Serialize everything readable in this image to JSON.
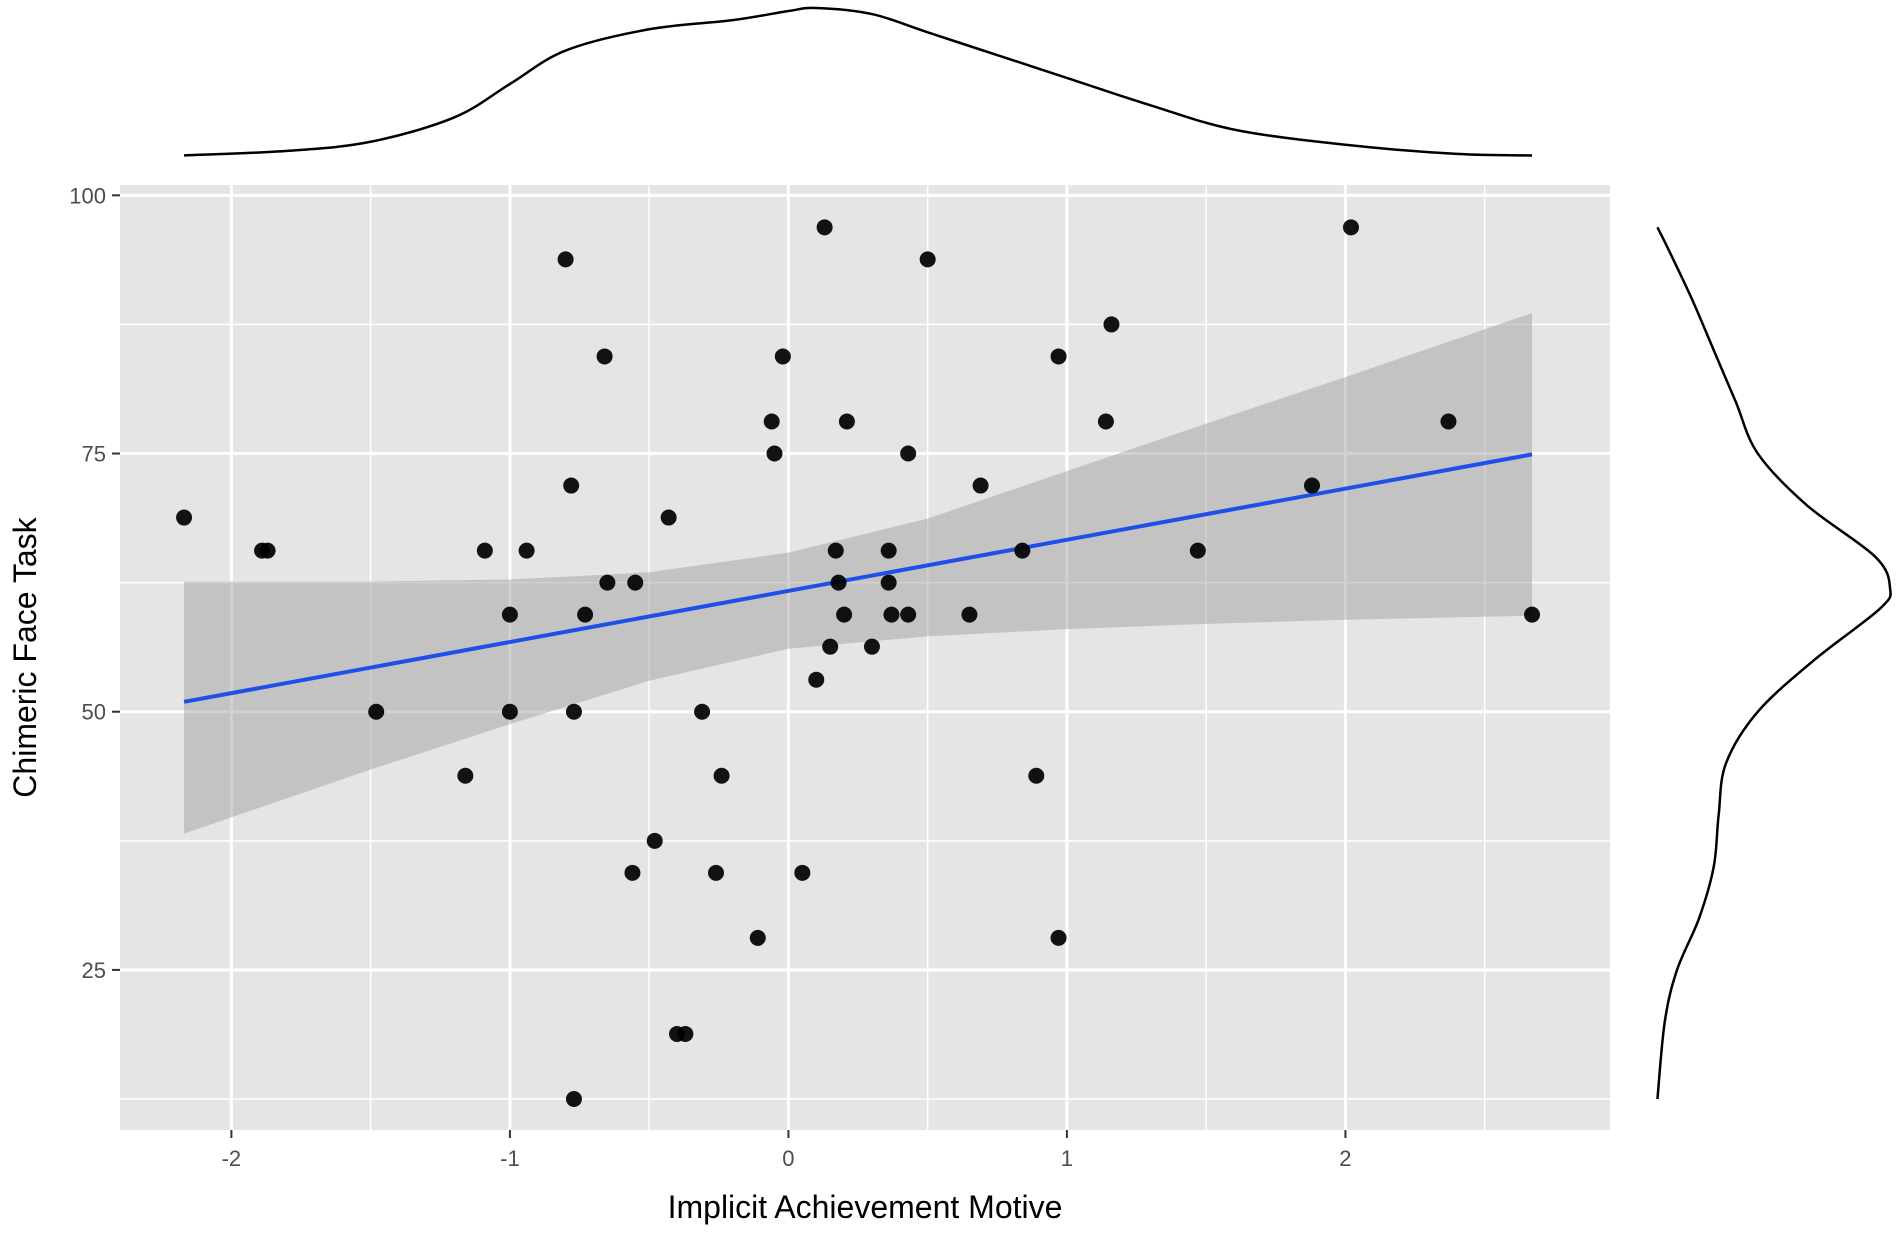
{
  "chart_data": {
    "type": "scatter",
    "xlabel": "Implicit Achievement Motive",
    "ylabel": "Chimeric Face Task",
    "xlim": [
      -2.4,
      2.95
    ],
    "ylim": [
      9.5,
      101
    ],
    "x_ticks": [
      -2,
      -1,
      0,
      1,
      2
    ],
    "y_ticks": [
      25,
      50,
      75,
      100
    ],
    "x_tick_labels": [
      "-2",
      "-1",
      "0",
      "1",
      "2"
    ],
    "y_tick_labels": [
      "25",
      "50",
      "75",
      "100"
    ],
    "grid": true,
    "legend": "none",
    "colors": {
      "panel": "#e5e5e5",
      "grid": "#ffffff",
      "points": "#000000",
      "line": "#1f4fe8",
      "band": "#999999"
    },
    "regression": {
      "x_range": [
        -2.17,
        2.67
      ],
      "intercept": 61.7,
      "slope": 4.95
    },
    "confidence_band": {
      "x": [
        -2.17,
        -1.5,
        -1.0,
        -0.5,
        0.0,
        0.5,
        1.0,
        1.5,
        2.0,
        2.67
      ],
      "lower": [
        38.2,
        44.4,
        48.8,
        53.0,
        56.1,
        57.3,
        58.0,
        58.5,
        58.9,
        59.3
      ],
      "upper": [
        62.6,
        62.6,
        62.8,
        63.5,
        65.4,
        68.7,
        73.3,
        77.9,
        82.4,
        88.6
      ]
    },
    "points": [
      {
        "x": -2.17,
        "y": 68.8
      },
      {
        "x": -1.89,
        "y": 65.6
      },
      {
        "x": -1.87,
        "y": 65.6
      },
      {
        "x": -1.48,
        "y": 50.0
      },
      {
        "x": -1.16,
        "y": 43.8
      },
      {
        "x": -1.09,
        "y": 65.6
      },
      {
        "x": -1.0,
        "y": 59.4
      },
      {
        "x": -1.0,
        "y": 50.0
      },
      {
        "x": -0.94,
        "y": 65.6
      },
      {
        "x": -0.8,
        "y": 93.8
      },
      {
        "x": -0.78,
        "y": 71.9
      },
      {
        "x": -0.77,
        "y": 50.0
      },
      {
        "x": -0.77,
        "y": 12.5
      },
      {
        "x": -0.73,
        "y": 59.4
      },
      {
        "x": -0.66,
        "y": 84.4
      },
      {
        "x": -0.65,
        "y": 62.5
      },
      {
        "x": -0.55,
        "y": 62.5
      },
      {
        "x": -0.56,
        "y": 34.4
      },
      {
        "x": -0.48,
        "y": 37.5
      },
      {
        "x": -0.43,
        "y": 68.8
      },
      {
        "x": -0.4,
        "y": 18.8
      },
      {
        "x": -0.37,
        "y": 18.8
      },
      {
        "x": -0.31,
        "y": 50.0
      },
      {
        "x": -0.26,
        "y": 34.4
      },
      {
        "x": -0.24,
        "y": 43.8
      },
      {
        "x": -0.11,
        "y": 28.1
      },
      {
        "x": -0.06,
        "y": 78.1
      },
      {
        "x": -0.05,
        "y": 75.0
      },
      {
        "x": -0.02,
        "y": 84.4
      },
      {
        "x": 0.05,
        "y": 34.4
      },
      {
        "x": 0.1,
        "y": 53.1
      },
      {
        "x": 0.13,
        "y": 96.9
      },
      {
        "x": 0.15,
        "y": 56.3
      },
      {
        "x": 0.17,
        "y": 65.6
      },
      {
        "x": 0.18,
        "y": 62.5
      },
      {
        "x": 0.2,
        "y": 59.4
      },
      {
        "x": 0.21,
        "y": 78.1
      },
      {
        "x": 0.3,
        "y": 56.3
      },
      {
        "x": 0.36,
        "y": 65.6
      },
      {
        "x": 0.36,
        "y": 62.5
      },
      {
        "x": 0.37,
        "y": 59.4
      },
      {
        "x": 0.43,
        "y": 59.4
      },
      {
        "x": 0.43,
        "y": 75.0
      },
      {
        "x": 0.5,
        "y": 93.8
      },
      {
        "x": 0.65,
        "y": 59.4
      },
      {
        "x": 0.69,
        "y": 71.9
      },
      {
        "x": 0.84,
        "y": 65.6
      },
      {
        "x": 0.89,
        "y": 43.8
      },
      {
        "x": 0.97,
        "y": 84.4
      },
      {
        "x": 0.97,
        "y": 28.1
      },
      {
        "x": 1.14,
        "y": 78.1
      },
      {
        "x": 1.16,
        "y": 87.5
      },
      {
        "x": 1.47,
        "y": 65.6
      },
      {
        "x": 1.88,
        "y": 71.9
      },
      {
        "x": 2.02,
        "y": 96.9
      },
      {
        "x": 2.37,
        "y": 78.1
      },
      {
        "x": 2.67,
        "y": 59.4
      }
    ],
    "x_density": {
      "x": [
        -2.17,
        -1.8,
        -1.5,
        -1.2,
        -1.0,
        -0.8,
        -0.5,
        -0.2,
        0.0,
        0.1,
        0.3,
        0.5,
        0.8,
        1.0,
        1.3,
        1.6,
        2.0,
        2.4,
        2.67
      ],
      "density": [
        0.015,
        0.03,
        0.06,
        0.14,
        0.25,
        0.36,
        0.43,
        0.46,
        0.49,
        0.5,
        0.48,
        0.42,
        0.33,
        0.27,
        0.18,
        0.1,
        0.05,
        0.02,
        0.015
      ]
    },
    "y_density": {
      "y": [
        12.5,
        20,
        25,
        30,
        35,
        40,
        45,
        50,
        55,
        60,
        62,
        65,
        70,
        75,
        80,
        85,
        90,
        95,
        96.9
      ],
      "density": [
        0.01,
        0.04,
        0.09,
        0.18,
        0.24,
        0.26,
        0.29,
        0.42,
        0.65,
        0.92,
        0.96,
        0.9,
        0.62,
        0.42,
        0.33,
        0.24,
        0.15,
        0.05,
        0.01
      ]
    }
  }
}
